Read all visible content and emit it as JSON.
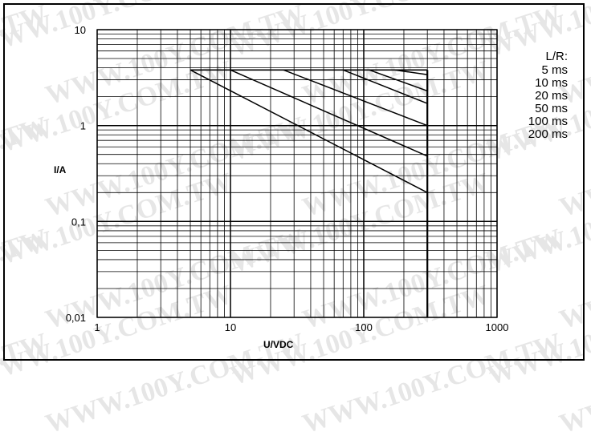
{
  "watermark": {
    "text": "WWW.100Y.COM.TW",
    "short_variant": "100Y.COM.TW",
    "color": "#e6e6e6"
  },
  "chart_data": {
    "type": "line",
    "title": "",
    "xlabel": "U/VDC",
    "ylabel": "I/A",
    "x_scale": "log",
    "y_scale": "log",
    "xlim": [
      1,
      1000
    ],
    "ylim": [
      0.01,
      10
    ],
    "grid": true,
    "x_tick_labels": [
      "1",
      "10",
      "100",
      "1000"
    ],
    "y_tick_labels": [
      "0,01",
      "0,1",
      "1",
      "10"
    ],
    "legend": {
      "title": "L/R:",
      "entries": [
        "5 ms",
        "10 ms",
        "20 ms",
        "50 ms",
        "100 ms",
        "200 ms"
      ],
      "placement": "right"
    },
    "current_limit": 3.8,
    "voltage_limit": 300,
    "series": [
      {
        "name": "5 ms",
        "x": [
          170,
          300
        ],
        "y": [
          3.8,
          3.4
        ]
      },
      {
        "name": "10 ms",
        "x": [
          110,
          300
        ],
        "y": [
          3.8,
          2.3
        ]
      },
      {
        "name": "20 ms",
        "x": [
          70,
          300
        ],
        "y": [
          3.8,
          1.7
        ]
      },
      {
        "name": "50 ms",
        "x": [
          25,
          300
        ],
        "y": [
          3.8,
          1.0
        ]
      },
      {
        "name": "100 ms",
        "x": [
          10,
          300
        ],
        "y": [
          3.8,
          0.48
        ]
      },
      {
        "name": "200 ms",
        "x": [
          5,
          300
        ],
        "y": [
          3.8,
          0.2
        ]
      }
    ]
  }
}
